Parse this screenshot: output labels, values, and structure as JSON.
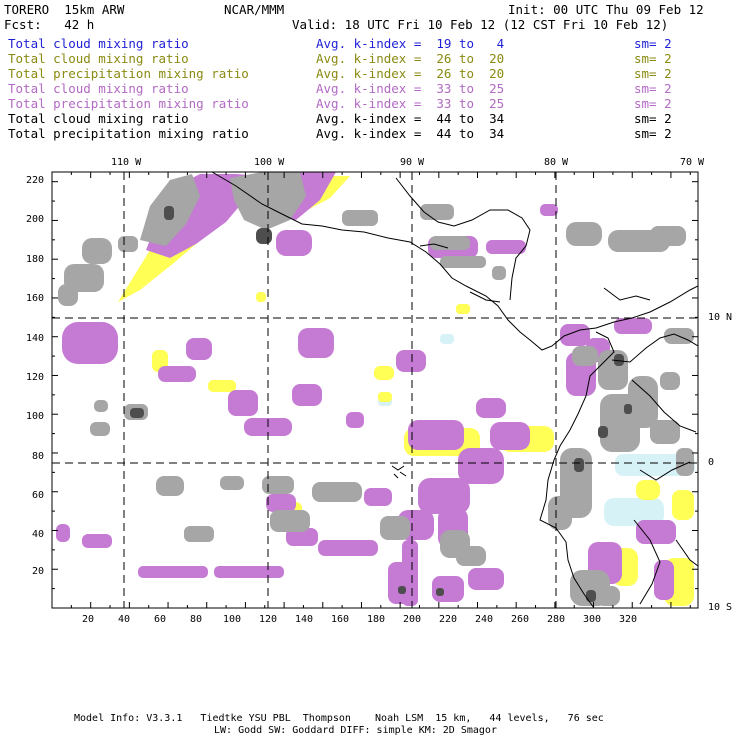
{
  "header": {
    "model": "TORERO  15km ARW",
    "org": "NCAR/MMM",
    "init": "Init: 00 UTC Thu 09 Feb 12",
    "fcst": "Fcst:   42 h",
    "valid": "Valid: 18 UTC Fri 10 Feb 12 (12 CST Fri 10 Feb 12)"
  },
  "legend": [
    {
      "field": "Total cloud mixing ratio",
      "kindex": "Avg. k-index =  19 to   4",
      "sm": "sm= 2",
      "color": "#1f1fd8"
    },
    {
      "field": "Total cloud mixing ratio",
      "kindex": "Avg. k-index =  26 to  20",
      "sm": "sm= 2",
      "color": "#8a8a12"
    },
    {
      "field": "Total precipitation mixing ratio",
      "kindex": "Avg. k-index =  26 to  20",
      "sm": "sm= 2",
      "color": "#8a8a12"
    },
    {
      "field": "Total cloud mixing ratio",
      "kindex": "Avg. k-index =  33 to  25",
      "sm": "sm= 2",
      "color": "#b36ac4"
    },
    {
      "field": "Total precipitation mixing ratio",
      "kindex": "Avg. k-index =  33 to  25",
      "sm": "sm= 2",
      "color": "#b36ac4"
    },
    {
      "field": "Total cloud mixing ratio",
      "kindex": "Avg. k-index =  44 to  34",
      "sm": "sm= 2",
      "color": "#000000"
    },
    {
      "field": "Total precipitation mixing ratio",
      "kindex": "Avg. k-index =  44 to  34",
      "sm": "sm= 2",
      "color": "#000000"
    }
  ],
  "map": {
    "lon_labels": [
      "110 W",
      "100 W",
      "90 W",
      "80 W",
      "70 W"
    ],
    "lat_labels": [
      "10 N",
      "0",
      "10 S"
    ],
    "x_ticks": [
      "20",
      "40",
      "60",
      "80",
      "100",
      "120",
      "140",
      "160",
      "180",
      "200",
      "220",
      "240",
      "260",
      "280",
      "300",
      "320"
    ],
    "y_ticks": [
      "220",
      "200",
      "180",
      "160",
      "140",
      "120",
      "100",
      "80",
      "60",
      "40",
      "20"
    ],
    "colors": {
      "yellow": "#ffff55",
      "purple": "#c57ad4",
      "gray": "#a6a6a6",
      "dark": "#4e4e4e",
      "cyan": "#d6f2f6",
      "coast": "#000000",
      "grid": "#000000"
    }
  },
  "footer": {
    "line1": "Model Info: V3.3.1   Tiedtke YSU PBL  Thompson    Noah LSM  15 km,   44 levels,   76 sec",
    "line2": "LW: Godd SW: Goddard DIFF: simple KM: 2D Smagor"
  }
}
